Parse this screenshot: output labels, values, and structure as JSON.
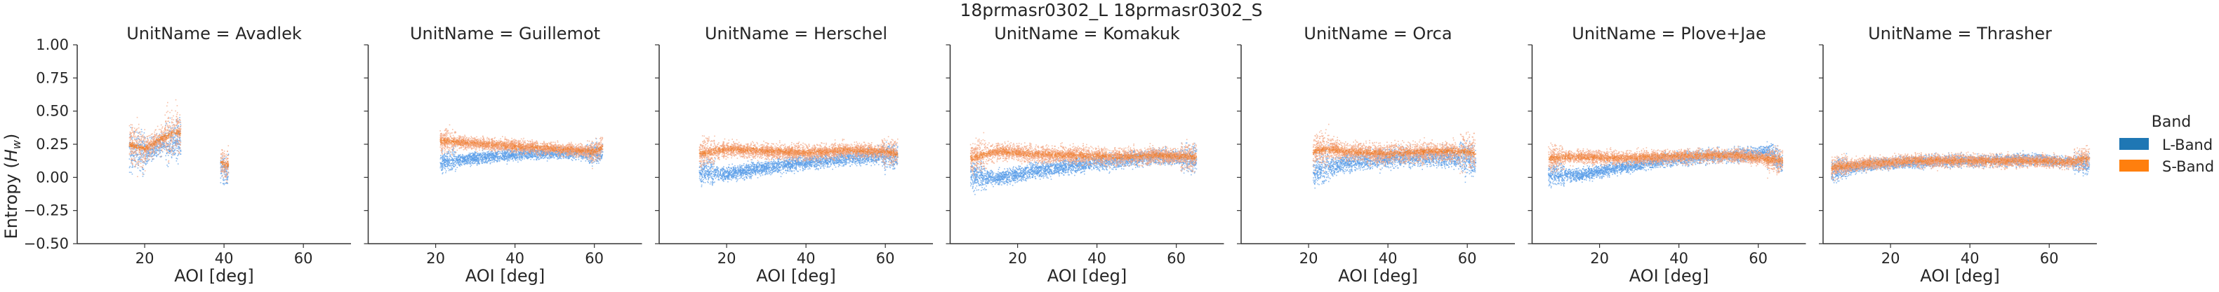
{
  "suptitle": "18prmasr0302_L 18prmasr0302_S",
  "legend": {
    "title": "Band",
    "items": [
      {
        "label": "L-Band",
        "color": "#1f77b4"
      },
      {
        "label": "S-Band",
        "color": "#ff7f0e"
      }
    ]
  },
  "chart_data": {
    "type": "scatter",
    "xlabel": "AOI [deg]",
    "ylabel": "Entropy (H_w)",
    "ylabel_main": "Entropy (",
    "ylabel_sym": "H",
    "ylabel_sub": "w",
    "ylabel_close": ")",
    "xlim": [
      3,
      72
    ],
    "ylim": [
      -0.5,
      1.0
    ],
    "xticks": [
      20,
      40,
      60
    ],
    "yticks": [
      -0.5,
      -0.25,
      0.0,
      0.25,
      0.5,
      0.75,
      1.0
    ],
    "ytick_labels": [
      "−0.50",
      "−0.25",
      "0.00",
      "0.25",
      "0.50",
      "0.75",
      "1.00"
    ],
    "grid": false,
    "legend_position": "right",
    "series_colors": {
      "L-Band": "#5b9ee8",
      "S-Band": "#f4a582",
      "S-Band-dense": "#f07f2a"
    },
    "panels": [
      {
        "title": "UnitName = Avadlek",
        "segments": [
          {
            "x0": 16,
            "x1": 29,
            "l": 0.22,
            "s": 0.27,
            "spread": 0.17
          },
          {
            "x0": 39,
            "x1": 41,
            "l": 0.06,
            "s": 0.1,
            "spread": 0.13
          }
        ],
        "L": [
          [
            16,
            0.2
          ],
          [
            20,
            0.18
          ],
          [
            24,
            0.25
          ],
          [
            28,
            0.3
          ],
          [
            40,
            0.05
          ]
        ],
        "S": [
          [
            16,
            0.25
          ],
          [
            20,
            0.22
          ],
          [
            24,
            0.3
          ],
          [
            28,
            0.35
          ],
          [
            40,
            0.1
          ]
        ]
      },
      {
        "title": "UnitName = Guillemot",
        "segments": [
          {
            "x0": 21,
            "x1": 62,
            "l": 0.14,
            "s": 0.23,
            "spread": 0.09
          }
        ],
        "L": [
          [
            21,
            0.12
          ],
          [
            30,
            0.15
          ],
          [
            40,
            0.18
          ],
          [
            50,
            0.19
          ],
          [
            60,
            0.18
          ],
          [
            62,
            0.2
          ]
        ],
        "S": [
          [
            21,
            0.28
          ],
          [
            30,
            0.26
          ],
          [
            40,
            0.24
          ],
          [
            50,
            0.22
          ],
          [
            60,
            0.2
          ],
          [
            62,
            0.24
          ]
        ]
      },
      {
        "title": "UnitName = Herschel",
        "segments": [
          {
            "x0": 13,
            "x1": 63,
            "l": 0.1,
            "s": 0.2,
            "spread": 0.11
          }
        ],
        "L": [
          [
            13,
            0.05
          ],
          [
            20,
            0.03
          ],
          [
            30,
            0.08
          ],
          [
            40,
            0.12
          ],
          [
            50,
            0.15
          ],
          [
            60,
            0.17
          ],
          [
            63,
            0.16
          ]
        ],
        "S": [
          [
            13,
            0.18
          ],
          [
            20,
            0.22
          ],
          [
            30,
            0.2
          ],
          [
            40,
            0.19
          ],
          [
            50,
            0.21
          ],
          [
            60,
            0.2
          ],
          [
            63,
            0.18
          ]
        ]
      },
      {
        "title": "UnitName = Komakuk",
        "segments": [
          {
            "x0": 8,
            "x1": 65,
            "l": 0.1,
            "s": 0.17,
            "spread": 0.12
          }
        ],
        "L": [
          [
            8,
            0.02
          ],
          [
            15,
            0.0
          ],
          [
            25,
            0.06
          ],
          [
            35,
            0.1
          ],
          [
            45,
            0.13
          ],
          [
            55,
            0.16
          ],
          [
            62,
            0.15
          ],
          [
            65,
            0.14
          ]
        ],
        "S": [
          [
            8,
            0.15
          ],
          [
            15,
            0.2
          ],
          [
            25,
            0.18
          ],
          [
            35,
            0.17
          ],
          [
            45,
            0.16
          ],
          [
            55,
            0.17
          ],
          [
            65,
            0.16
          ]
        ]
      },
      {
        "title": "UnitName = Orca",
        "segments": [
          {
            "x0": 21,
            "x1": 62,
            "l": 0.13,
            "s": 0.2,
            "spread": 0.14
          }
        ],
        "L": [
          [
            21,
            0.05
          ],
          [
            25,
            0.08
          ],
          [
            30,
            0.12
          ],
          [
            40,
            0.15
          ],
          [
            50,
            0.16
          ],
          [
            60,
            0.15
          ],
          [
            62,
            0.12
          ]
        ],
        "S": [
          [
            21,
            0.2
          ],
          [
            25,
            0.22
          ],
          [
            30,
            0.2
          ],
          [
            40,
            0.18
          ],
          [
            50,
            0.2
          ],
          [
            60,
            0.2
          ],
          [
            62,
            0.18
          ]
        ]
      },
      {
        "title": "UnitName = Plove+Jae",
        "segments": [
          {
            "x0": 7,
            "x1": 66,
            "l": 0.1,
            "s": 0.16,
            "spread": 0.1
          }
        ],
        "L": [
          [
            7,
            0.03
          ],
          [
            15,
            0.02
          ],
          [
            25,
            0.08
          ],
          [
            35,
            0.13
          ],
          [
            45,
            0.16
          ],
          [
            55,
            0.17
          ],
          [
            63,
            0.2
          ],
          [
            66,
            0.1
          ]
        ],
        "S": [
          [
            7,
            0.15
          ],
          [
            15,
            0.16
          ],
          [
            25,
            0.15
          ],
          [
            35,
            0.16
          ],
          [
            45,
            0.17
          ],
          [
            55,
            0.17
          ],
          [
            63,
            0.14
          ],
          [
            66,
            0.13
          ]
        ]
      },
      {
        "title": "UnitName = Thrasher",
        "segments": [
          {
            "x0": 5,
            "x1": 70,
            "l": 0.11,
            "s": 0.12,
            "spread": 0.09
          }
        ],
        "L": [
          [
            5,
            0.05
          ],
          [
            15,
            0.1
          ],
          [
            25,
            0.12
          ],
          [
            35,
            0.13
          ],
          [
            45,
            0.13
          ],
          [
            55,
            0.14
          ],
          [
            65,
            0.12
          ],
          [
            70,
            0.1
          ]
        ],
        "S": [
          [
            5,
            0.08
          ],
          [
            15,
            0.11
          ],
          [
            25,
            0.13
          ],
          [
            35,
            0.13
          ],
          [
            45,
            0.13
          ],
          [
            55,
            0.13
          ],
          [
            65,
            0.12
          ],
          [
            70,
            0.15
          ]
        ]
      }
    ]
  }
}
